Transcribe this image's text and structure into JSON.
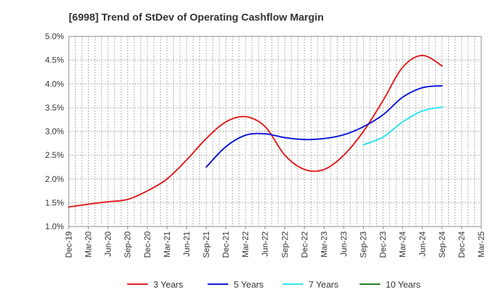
{
  "chart_data": {
    "type": "line",
    "title": "[6998]  Trend of StDev of Operating Cashflow Margin",
    "xlabel": "",
    "ylabel": "",
    "ylim": [
      1.0,
      5.0
    ],
    "y_ticks": [
      "1.0%",
      "1.5%",
      "2.0%",
      "2.5%",
      "3.0%",
      "3.5%",
      "4.0%",
      "4.5%",
      "5.0%"
    ],
    "y_tick_values": [
      1.0,
      1.5,
      2.0,
      2.5,
      3.0,
      3.5,
      4.0,
      4.5,
      5.0
    ],
    "categories": [
      "Dec-19",
      "Mar-20",
      "Jun-20",
      "Sep-20",
      "Dec-20",
      "Mar-21",
      "Jun-21",
      "Sep-21",
      "Dec-21",
      "Mar-22",
      "Jun-22",
      "Sep-22",
      "Dec-22",
      "Mar-23",
      "Jun-23",
      "Sep-23",
      "Dec-23",
      "Mar-24",
      "Jun-24",
      "Sep-24",
      "Dec-24",
      "Mar-25"
    ],
    "grid": true,
    "legend_position": "bottom",
    "series": [
      {
        "name": "3 Years",
        "color": "#e31a1c",
        "values": [
          1.41,
          1.47,
          1.52,
          1.57,
          1.75,
          2.0,
          2.4,
          2.85,
          3.2,
          3.31,
          3.1,
          2.5,
          2.2,
          2.2,
          2.5,
          3.0,
          3.65,
          4.35,
          4.6,
          4.38,
          null,
          null
        ]
      },
      {
        "name": "5 Years",
        "color": "#0a12d6",
        "values": [
          null,
          null,
          null,
          null,
          null,
          null,
          null,
          2.25,
          2.68,
          2.92,
          2.95,
          2.87,
          2.83,
          2.85,
          2.93,
          3.1,
          3.35,
          3.72,
          3.92,
          3.96,
          null,
          null
        ]
      },
      {
        "name": "7 Years",
        "color": "#22e6f0",
        "values": [
          null,
          null,
          null,
          null,
          null,
          null,
          null,
          null,
          null,
          null,
          null,
          null,
          null,
          null,
          null,
          2.72,
          2.88,
          3.2,
          3.43,
          3.51,
          null,
          null
        ]
      },
      {
        "name": "10 Years",
        "color": "#1a7d1a",
        "values": [
          null,
          null,
          null,
          null,
          null,
          null,
          null,
          null,
          null,
          null,
          null,
          null,
          null,
          null,
          null,
          null,
          null,
          null,
          null,
          null,
          null,
          null
        ]
      }
    ]
  }
}
